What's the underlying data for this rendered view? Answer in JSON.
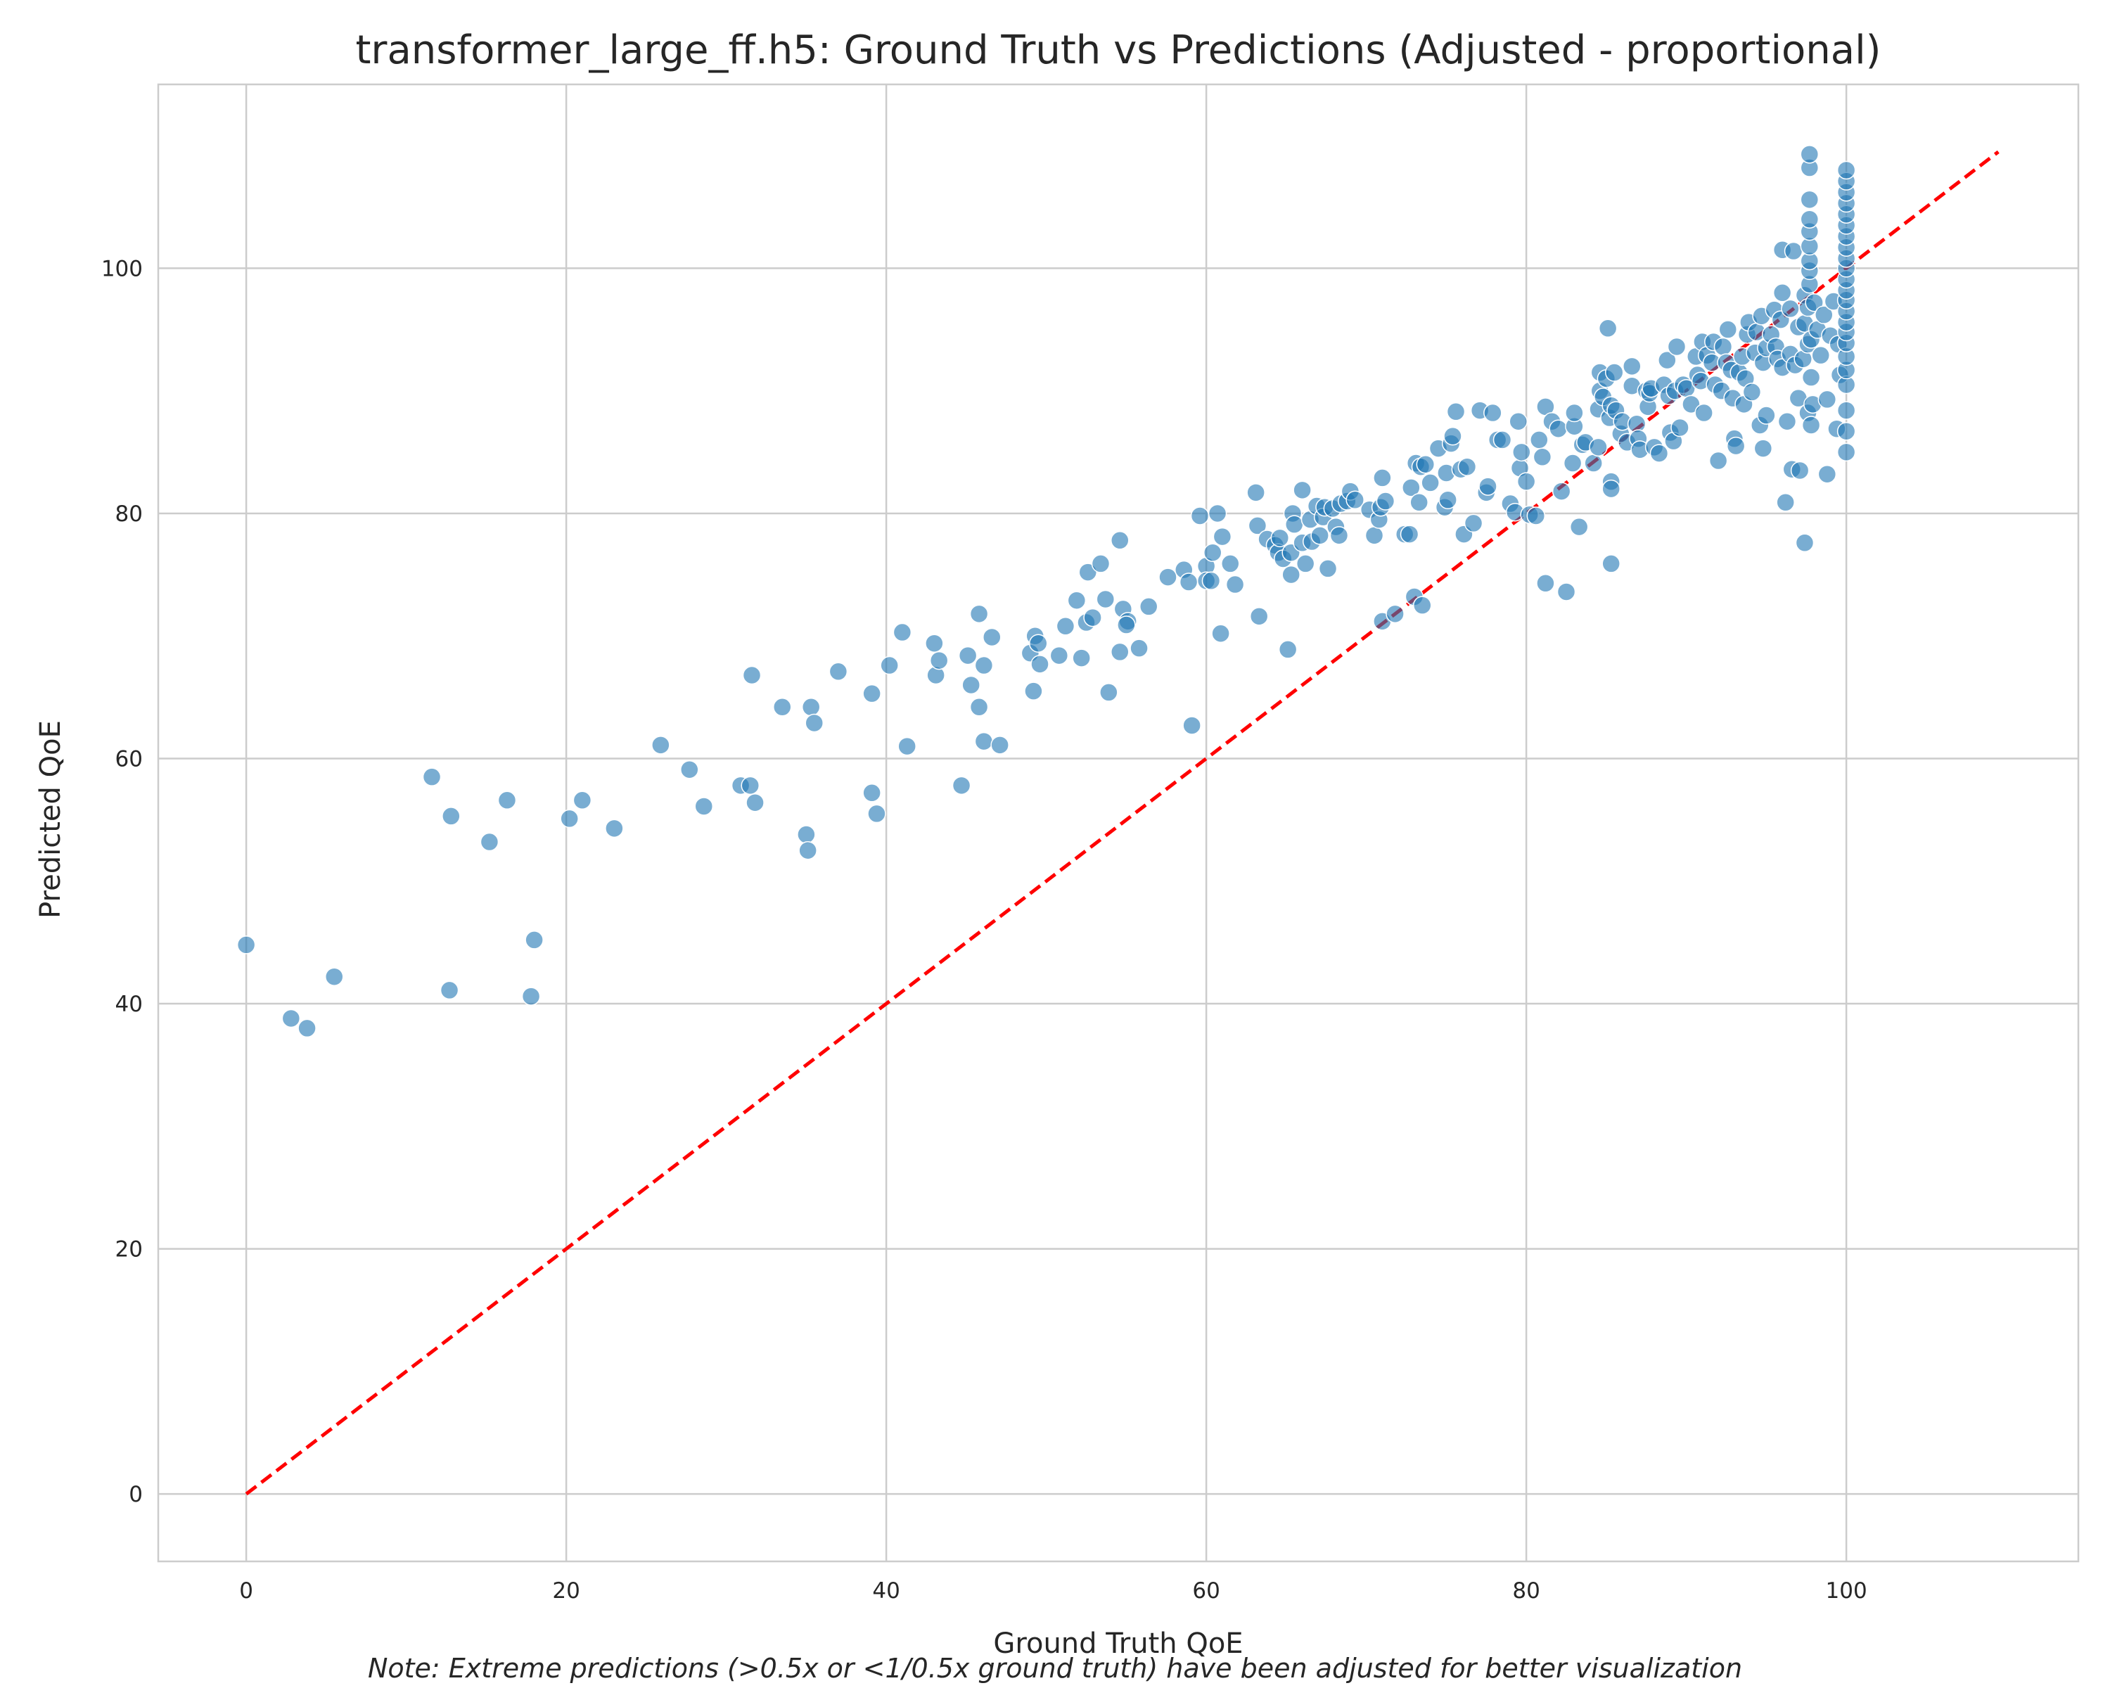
{
  "chart_data": {
    "type": "scatter",
    "title": "transformer_large_ff.h5: Ground Truth vs Predictions (Adjusted - proportional)",
    "xlabel": "Ground Truth QoE",
    "ylabel": "Predicted QoE",
    "note": "Note: Extreme predictions (>0.5x or <1/0.5x ground truth) have been adjusted for better visualization",
    "xlim": [
      -5.5,
      114.5
    ],
    "ylim": [
      -5.5,
      115
    ],
    "xticks": [
      "0",
      "20",
      "40",
      "60",
      "80",
      "100"
    ],
    "yticks": [
      "0",
      "20",
      "40",
      "60",
      "80",
      "100"
    ],
    "grid": true,
    "point_color": "#1f77b4",
    "reference_line": {
      "x": [
        0,
        109.5
      ],
      "y": [
        0,
        109.5
      ],
      "color": "#ff0000",
      "style": "dashed"
    },
    "points": [
      [
        0,
        44.8
      ],
      [
        2.8,
        38.8
      ],
      [
        3.8,
        38
      ],
      [
        5.5,
        42.2
      ],
      [
        11.6,
        58.5
      ],
      [
        12.7,
        41.1
      ],
      [
        12.8,
        55.3
      ],
      [
        15.2,
        53.2
      ],
      [
        16.3,
        56.6
      ],
      [
        17.8,
        40.6
      ],
      [
        18,
        45.2
      ],
      [
        20.2,
        55.1
      ],
      [
        21,
        56.6
      ],
      [
        23,
        54.3
      ],
      [
        25.9,
        61.1
      ],
      [
        27.7,
        59.1
      ],
      [
        28.6,
        56.1
      ],
      [
        30.9,
        57.8
      ],
      [
        31.5,
        57.8
      ],
      [
        31.6,
        66.8
      ],
      [
        31.8,
        56.4
      ],
      [
        33.5,
        64.2
      ],
      [
        35,
        53.8
      ],
      [
        35.1,
        52.5
      ],
      [
        35.3,
        64.2
      ],
      [
        35.5,
        62.9
      ],
      [
        37,
        67.1
      ],
      [
        39.1,
        65.3
      ],
      [
        39.1,
        57.2
      ],
      [
        39.4,
        55.5
      ],
      [
        40.2,
        67.6
      ],
      [
        41,
        70.3
      ],
      [
        41.3,
        61
      ],
      [
        43,
        69.4
      ],
      [
        43.1,
        66.8
      ],
      [
        43.3,
        68
      ],
      [
        44.7,
        57.8
      ],
      [
        45.1,
        68.4
      ],
      [
        45.3,
        66
      ],
      [
        45.8,
        71.8
      ],
      [
        45.8,
        64.2
      ],
      [
        46.1,
        67.6
      ],
      [
        46.1,
        61.4
      ],
      [
        46.6,
        69.9
      ],
      [
        47.1,
        61.1
      ],
      [
        49,
        68.6
      ],
      [
        49.2,
        65.5
      ],
      [
        49.3,
        70
      ],
      [
        49.5,
        69.4
      ],
      [
        49.6,
        67.7
      ],
      [
        50.8,
        68.4
      ],
      [
        51.2,
        70.8
      ],
      [
        51.9,
        72.9
      ],
      [
        52.2,
        68.2
      ],
      [
        52.5,
        71.1
      ],
      [
        52.6,
        75.2
      ],
      [
        52.9,
        71.5
      ],
      [
        53.4,
        75.9
      ],
      [
        53.7,
        73
      ],
      [
        53.9,
        65.4
      ],
      [
        54.6,
        68.7
      ],
      [
        54.6,
        77.8
      ],
      [
        54.8,
        72.2
      ],
      [
        55.1,
        71.2
      ],
      [
        55,
        70.9
      ],
      [
        55.8,
        69
      ],
      [
        56.4,
        72.4
      ],
      [
        57.6,
        74.8
      ],
      [
        58.6,
        75.4
      ],
      [
        58.9,
        74.4
      ],
      [
        59.1,
        62.7
      ],
      [
        59.6,
        79.8
      ],
      [
        60,
        75.7
      ],
      [
        60,
        74.5
      ],
      [
        60.3,
        74.5
      ],
      [
        60.4,
        76.8
      ],
      [
        60.7,
        80
      ],
      [
        60.9,
        70.2
      ],
      [
        61,
        78.1
      ],
      [
        61.5,
        75.9
      ],
      [
        61.8,
        74.2
      ],
      [
        63.1,
        81.7
      ],
      [
        63.2,
        79
      ],
      [
        63.3,
        71.6
      ],
      [
        63.8,
        77.9
      ],
      [
        64.3,
        77.4
      ],
      [
        64.5,
        76.8
      ],
      [
        64.6,
        78
      ],
      [
        64.8,
        76.3
      ],
      [
        65.1,
        68.9
      ],
      [
        65.3,
        76.8
      ],
      [
        65.3,
        75
      ],
      [
        65.4,
        80
      ],
      [
        65.5,
        79.1
      ],
      [
        66,
        77.6
      ],
      [
        66,
        81.9
      ],
      [
        66.2,
        75.9
      ],
      [
        66.5,
        79.5
      ],
      [
        66.6,
        77.7
      ],
      [
        66.9,
        80.6
      ],
      [
        67.1,
        78.2
      ],
      [
        67.3,
        79.7
      ],
      [
        67.4,
        80.5
      ],
      [
        67.6,
        75.5
      ],
      [
        67.9,
        80.4
      ],
      [
        68.1,
        78.9
      ],
      [
        68.3,
        78.2
      ],
      [
        68.4,
        80.8
      ],
      [
        68.8,
        81
      ],
      [
        69,
        81.8
      ],
      [
        69.3,
        81.1
      ],
      [
        70.2,
        80.3
      ],
      [
        70.5,
        78.2
      ],
      [
        70.8,
        79.5
      ],
      [
        70.9,
        80.5
      ],
      [
        71,
        71.2
      ],
      [
        71,
        82.9
      ],
      [
        71.2,
        81
      ],
      [
        71.8,
        71.8
      ],
      [
        72.4,
        78.3
      ],
      [
        72.7,
        78.3
      ],
      [
        72.8,
        82.1
      ],
      [
        73,
        73.2
      ],
      [
        73.1,
        84.1
      ],
      [
        73.3,
        80.9
      ],
      [
        73.4,
        83.8
      ],
      [
        73.5,
        72.5
      ],
      [
        73.7,
        84
      ],
      [
        74,
        82.5
      ],
      [
        74.5,
        85.3
      ],
      [
        74.9,
        80.5
      ],
      [
        75,
        83.3
      ],
      [
        75.1,
        81.1
      ],
      [
        75.3,
        85.7
      ],
      [
        75.4,
        86.3
      ],
      [
        75.6,
        88.3
      ],
      [
        75.9,
        83.6
      ],
      [
        76.1,
        78.3
      ],
      [
        76.3,
        83.8
      ],
      [
        76.7,
        79.2
      ],
      [
        77.1,
        88.4
      ],
      [
        77.5,
        81.7
      ],
      [
        77.6,
        82.2
      ],
      [
        77.9,
        88.2
      ],
      [
        78.2,
        86
      ],
      [
        78.5,
        86
      ],
      [
        79,
        80.8
      ],
      [
        79.3,
        80.1
      ],
      [
        79.5,
        87.5
      ],
      [
        79.6,
        83.7
      ],
      [
        79.7,
        85
      ],
      [
        80,
        82.6
      ],
      [
        80.2,
        79.9
      ],
      [
        80.6,
        79.8
      ],
      [
        80.8,
        86
      ],
      [
        81,
        84.6
      ],
      [
        81.2,
        74.3
      ],
      [
        81.2,
        88.7
      ],
      [
        81.6,
        87.5
      ],
      [
        82,
        86.9
      ],
      [
        82.2,
        81.8
      ],
      [
        82.5,
        73.6
      ],
      [
        82.9,
        84.1
      ],
      [
        83,
        87.1
      ],
      [
        83,
        88.2
      ],
      [
        83.3,
        78.9
      ],
      [
        83.5,
        85.6
      ],
      [
        83.7,
        85.8
      ],
      [
        84.2,
        84.1
      ],
      [
        84.5,
        85.4
      ],
      [
        84.5,
        88.5
      ],
      [
        84.6,
        90
      ],
      [
        84.6,
        91.5
      ],
      [
        84.8,
        89.5
      ],
      [
        85,
        91
      ],
      [
        85.1,
        95.1
      ],
      [
        85.2,
        87.8
      ],
      [
        85.3,
        88.8
      ],
      [
        85.3,
        82.6
      ],
      [
        85.3,
        82
      ],
      [
        85.3,
        75.9
      ],
      [
        85.5,
        91.5
      ],
      [
        85.6,
        88.4
      ],
      [
        85.9,
        86.5
      ],
      [
        86,
        87.5
      ],
      [
        86.3,
        85.8
      ],
      [
        86.6,
        90.4
      ],
      [
        86.6,
        92
      ],
      [
        86.9,
        87.3
      ],
      [
        87,
        86.1
      ],
      [
        87.1,
        85.2
      ],
      [
        87.5,
        90
      ],
      [
        87.6,
        88.7
      ],
      [
        87.7,
        89.8
      ],
      [
        87.8,
        90.2
      ],
      [
        88,
        85.4
      ],
      [
        88.3,
        84.9
      ],
      [
        88.6,
        90.5
      ],
      [
        88.8,
        92.5
      ],
      [
        88.9,
        89.6
      ],
      [
        89,
        86.6
      ],
      [
        89.2,
        85.9
      ],
      [
        89.3,
        90
      ],
      [
        89.4,
        93.6
      ],
      [
        89.6,
        87
      ],
      [
        89.8,
        90.5
      ],
      [
        90,
        90.2
      ],
      [
        90.3,
        88.9
      ],
      [
        90.6,
        92.8
      ],
      [
        90.7,
        91.3
      ],
      [
        90.9,
        90.8
      ],
      [
        91,
        94
      ],
      [
        91.1,
        88.2
      ],
      [
        91.3,
        92.9
      ],
      [
        91.6,
        92.3
      ],
      [
        91.7,
        94
      ],
      [
        91.8,
        90.5
      ],
      [
        92,
        84.3
      ],
      [
        92.2,
        90
      ],
      [
        92.3,
        93.6
      ],
      [
        92.5,
        92.3
      ],
      [
        92.6,
        95
      ],
      [
        92.8,
        91.7
      ],
      [
        92.9,
        89.4
      ],
      [
        93,
        86.1
      ],
      [
        93.1,
        85.5
      ],
      [
        93.3,
        91.5
      ],
      [
        93.5,
        92.8
      ],
      [
        93.6,
        88.9
      ],
      [
        93.7,
        91
      ],
      [
        93.8,
        94.6
      ],
      [
        93.9,
        95.6
      ],
      [
        94.1,
        89.9
      ],
      [
        94.3,
        93.1
      ],
      [
        94.4,
        94.8
      ],
      [
        94.6,
        87.2
      ],
      [
        94.7,
        96.1
      ],
      [
        94.8,
        92.3
      ],
      [
        94.8,
        85.3
      ],
      [
        95,
        93.5
      ],
      [
        95,
        88
      ],
      [
        95.3,
        94.6
      ],
      [
        95.5,
        96.6
      ],
      [
        95.6,
        93.6
      ],
      [
        95.7,
        92.6
      ],
      [
        95.9,
        95.8
      ],
      [
        96,
        91.9
      ],
      [
        96,
        98
      ],
      [
        96,
        101.5
      ],
      [
        96.2,
        80.9
      ],
      [
        96.3,
        87.5
      ],
      [
        96.5,
        93
      ],
      [
        96.5,
        96.7
      ],
      [
        96.6,
        83.6
      ],
      [
        96.7,
        101.4
      ],
      [
        96.8,
        92.1
      ],
      [
        97,
        95.2
      ],
      [
        97,
        89.4
      ],
      [
        97.1,
        83.5
      ],
      [
        97.3,
        92.6
      ],
      [
        97.4,
        95.5
      ],
      [
        97.4,
        97.8
      ],
      [
        97.4,
        77.6
      ],
      [
        97.6,
        88.2
      ],
      [
        97.6,
        93.8
      ],
      [
        97.6,
        96.8
      ],
      [
        97.7,
        98.7
      ],
      [
        97.7,
        99.8
      ],
      [
        97.7,
        100.6
      ],
      [
        97.7,
        101.8
      ],
      [
        97.7,
        103
      ],
      [
        97.7,
        104
      ],
      [
        97.7,
        105.6
      ],
      [
        97.7,
        108.2
      ],
      [
        97.7,
        109.3
      ],
      [
        97.8,
        94.2
      ],
      [
        97.8,
        91.1
      ],
      [
        97.8,
        87.2
      ],
      [
        97.9,
        88.9
      ],
      [
        98,
        97.2
      ],
      [
        98.2,
        95
      ],
      [
        98.4,
        92.9
      ],
      [
        98.6,
        96.2
      ],
      [
        98.8,
        83.2
      ],
      [
        98.8,
        89.3
      ],
      [
        99,
        94.5
      ],
      [
        99.2,
        97.3
      ],
      [
        99.4,
        86.9
      ],
      [
        99.5,
        93.8
      ],
      [
        99.6,
        91.3
      ],
      [
        100,
        85
      ],
      [
        100,
        86.7
      ],
      [
        100,
        88.4
      ],
      [
        100,
        90.5
      ],
      [
        100,
        91.7
      ],
      [
        100,
        92.8
      ],
      [
        100,
        93.9
      ],
      [
        100,
        94.8
      ],
      [
        100,
        95.6
      ],
      [
        100,
        96.5
      ],
      [
        100,
        97.4
      ],
      [
        100,
        98.2
      ],
      [
        100,
        99.1
      ],
      [
        100,
        100
      ],
      [
        100,
        100.8
      ],
      [
        100,
        101.7
      ],
      [
        100,
        102.6
      ],
      [
        100,
        103.5
      ],
      [
        100,
        104.4
      ],
      [
        100,
        105.3
      ],
      [
        100,
        106.2
      ],
      [
        100,
        107.1
      ],
      [
        100,
        108
      ]
    ]
  }
}
